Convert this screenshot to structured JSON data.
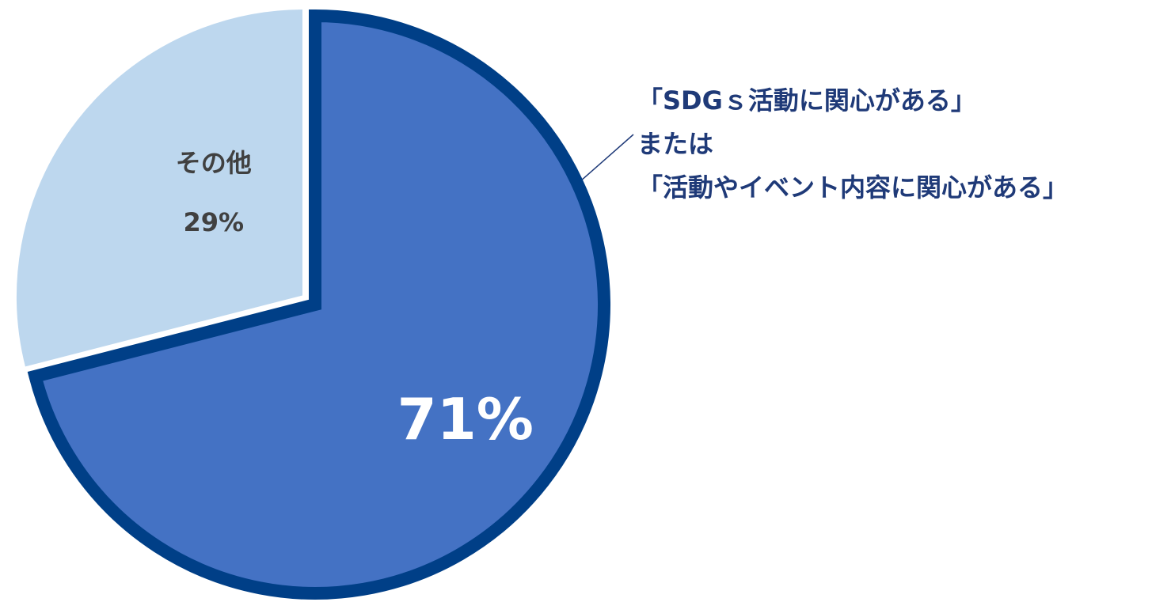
{
  "chart_data": {
    "type": "pie",
    "categories": [
      "「SDGｓ活動に関心がある」\nまたは\n「活動やイベント内容に関心がある」",
      "その他"
    ],
    "values": [
      71,
      29
    ],
    "value_labels": [
      "71%",
      "29%"
    ],
    "colors": [
      "#4472c4",
      "#bdd7ee"
    ]
  }
}
